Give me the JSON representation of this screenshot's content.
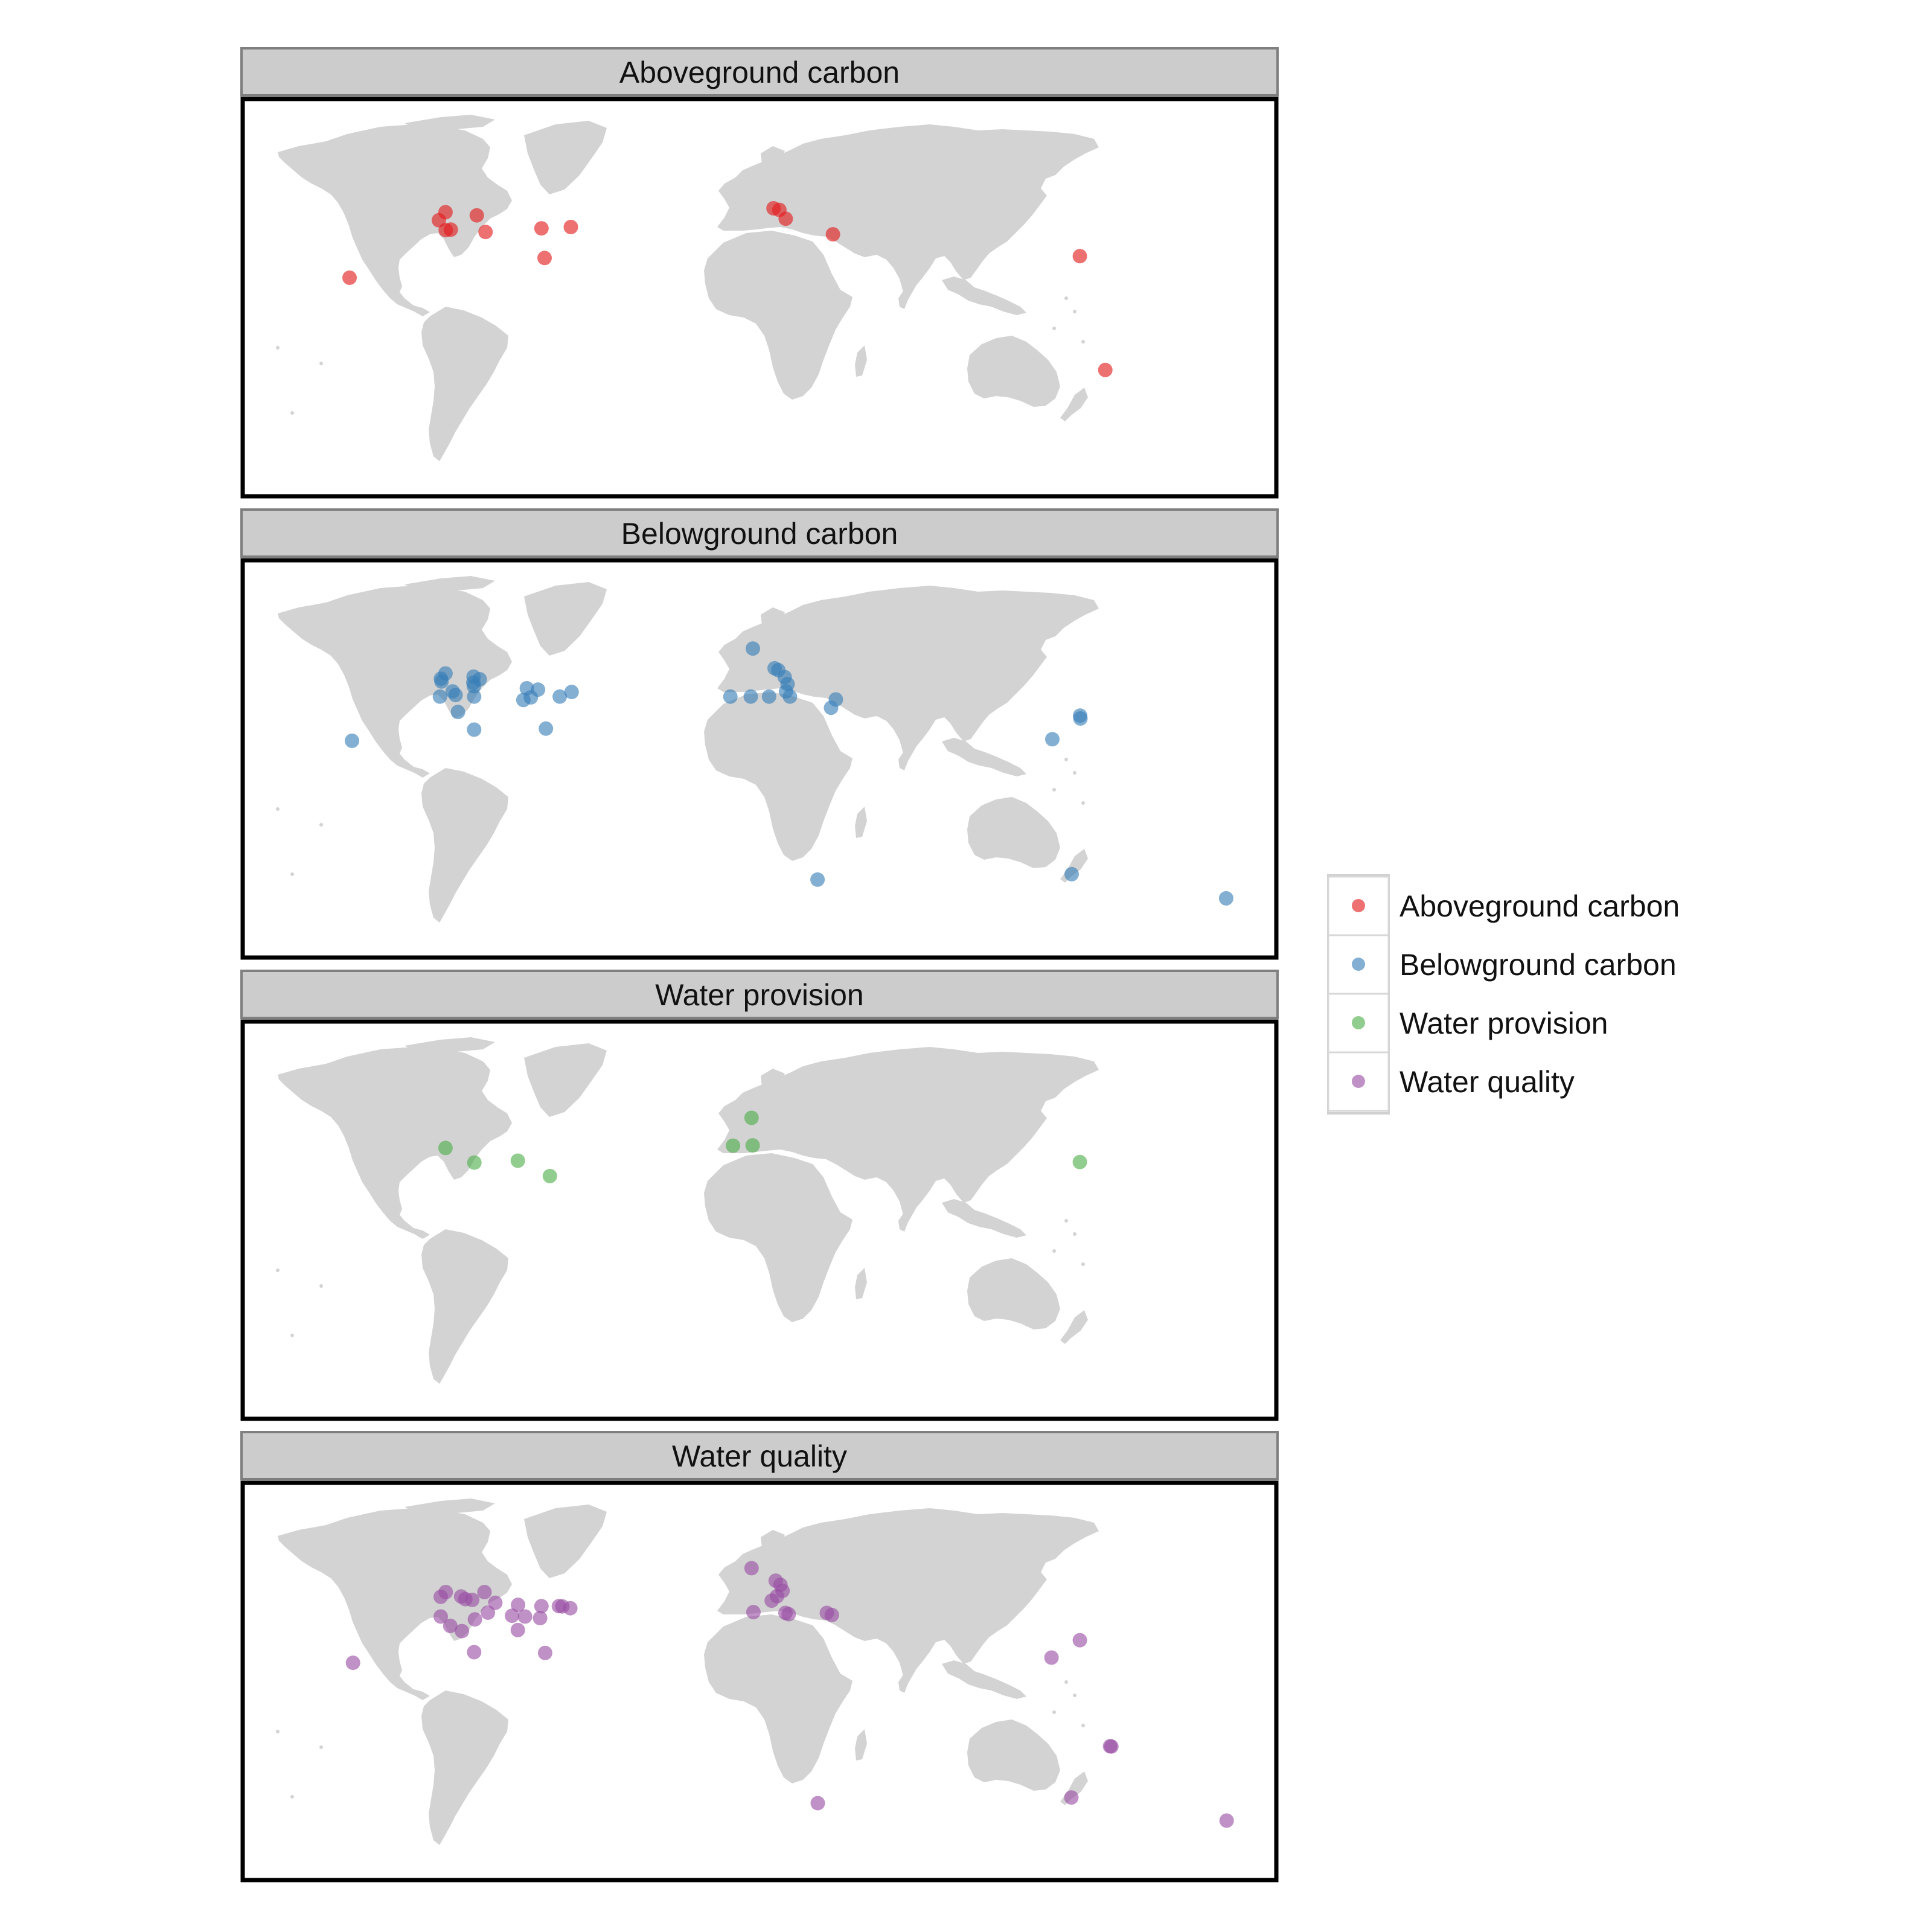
{
  "colors": {
    "land": "#d3d3d3",
    "strip_fill": "#cccccc",
    "strip_border": "#7f7f7f",
    "panel_border": "#000000"
  },
  "panels": [
    {
      "title": "Aboveground carbon",
      "color": "#e41a1c",
      "points": [
        {
          "lon": -120.1,
          "lat": 45.1
        },
        {
          "lon": -122.6,
          "lat": 42.0
        },
        {
          "lon": -120.0,
          "lat": 38.2
        },
        {
          "lon": -118.1,
          "lat": 38.4
        },
        {
          "lon": -108.3,
          "lat": 43.9
        },
        {
          "lon": -105.0,
          "lat": 37.5
        },
        {
          "lon": -83.9,
          "lat": 38.9
        },
        {
          "lon": -72.8,
          "lat": 39.4
        },
        {
          "lon": -82.7,
          "lat": 27.5
        },
        {
          "lon": -156.3,
          "lat": 19.9
        },
        {
          "lon": 3.7,
          "lat": 46.6
        },
        {
          "lon": 5.9,
          "lat": 46.0
        },
        {
          "lon": 8.3,
          "lat": 42.6
        },
        {
          "lon": 26.1,
          "lat": 36.6
        },
        {
          "lon": 119.3,
          "lat": 28.2
        },
        {
          "lon": 128.9,
          "lat": -15.6
        }
      ]
    },
    {
      "title": "Belowground carbon",
      "color": "#377eb8",
      "points": [
        {
          "lon": -120.1,
          "lat": 45.1
        },
        {
          "lon": -121.8,
          "lat": 43.1
        },
        {
          "lon": -121.6,
          "lat": 42.0
        },
        {
          "lon": -117.4,
          "lat": 38.2
        },
        {
          "lon": -122.2,
          "lat": 36.2
        },
        {
          "lon": -116.3,
          "lat": 36.8
        },
        {
          "lon": -109.5,
          "lat": 43.9
        },
        {
          "lon": -107.2,
          "lat": 42.9
        },
        {
          "lon": -109.6,
          "lat": 41.6
        },
        {
          "lon": -109.4,
          "lat": 40.2
        },
        {
          "lon": -109.3,
          "lat": 36.2
        },
        {
          "lon": -115.4,
          "lat": 30.3
        },
        {
          "lon": -109.3,
          "lat": 23.5
        },
        {
          "lon": -89.4,
          "lat": 39.4
        },
        {
          "lon": -85.2,
          "lat": 38.9
        },
        {
          "lon": -90.7,
          "lat": 34.9
        },
        {
          "lon": -87.9,
          "lat": 35.9
        },
        {
          "lon": -77.0,
          "lat": 36.2
        },
        {
          "lon": -72.5,
          "lat": 38.0
        },
        {
          "lon": -82.2,
          "lat": 23.9
        },
        {
          "lon": -155.4,
          "lat": 19.2
        },
        {
          "lon": -4.1,
          "lat": 54.7
        },
        {
          "lon": 4.1,
          "lat": 47.1
        },
        {
          "lon": 5.5,
          "lat": 46.4
        },
        {
          "lon": 7.9,
          "lat": 43.7
        },
        {
          "lon": 9.0,
          "lat": 41.0
        },
        {
          "lon": 8.4,
          "lat": 38.2
        },
        {
          "lon": 2.0,
          "lat": 36.2
        },
        {
          "lon": -12.6,
          "lat": 36.2
        },
        {
          "lon": -4.9,
          "lat": 36.2
        },
        {
          "lon": 9.9,
          "lat": 36.2
        },
        {
          "lon": 27.2,
          "lat": 35.1
        },
        {
          "lon": 25.4,
          "lat": 31.9
        },
        {
          "lon": 119.4,
          "lat": 28.9
        },
        {
          "lon": 119.5,
          "lat": 27.8
        },
        {
          "lon": 108.9,
          "lat": 19.8
        },
        {
          "lon": 20.3,
          "lat": -34.2
        },
        {
          "lon": 116.2,
          "lat": -32.1
        },
        {
          "lon": 174.5,
          "lat": -41.4
        }
      ]
    },
    {
      "title": "Water provision",
      "color": "#4daf4a",
      "points": [
        {
          "lon": -120.1,
          "lat": 40.0
        },
        {
          "lon": -109.2,
          "lat": 34.4
        },
        {
          "lon": -92.8,
          "lat": 35.1
        },
        {
          "lon": -80.7,
          "lat": 29.2
        },
        {
          "lon": -4.6,
          "lat": 51.6
        },
        {
          "lon": -11.6,
          "lat": 40.9
        },
        {
          "lon": -4.2,
          "lat": 41.0
        },
        {
          "lon": 119.3,
          "lat": 34.6
        }
      ]
    },
    {
      "title": "Water quality",
      "color": "#984ea3",
      "points": [
        {
          "lon": -120.0,
          "lat": 46.6
        },
        {
          "lon": -121.9,
          "lat": 44.8
        },
        {
          "lon": -114.2,
          "lat": 44.9
        },
        {
          "lon": -112.6,
          "lat": 43.9
        },
        {
          "lon": -110.0,
          "lat": 43.6
        },
        {
          "lon": -105.4,
          "lat": 46.6
        },
        {
          "lon": -101.3,
          "lat": 42.5
        },
        {
          "lon": -92.7,
          "lat": 41.7
        },
        {
          "lon": -83.9,
          "lat": 41.2
        },
        {
          "lon": -77.3,
          "lat": 41.2
        },
        {
          "lon": -73.0,
          "lat": 40.4
        },
        {
          "lon": -76.0,
          "lat": 41.1
        },
        {
          "lon": -84.4,
          "lat": 36.6
        },
        {
          "lon": -90.1,
          "lat": 37.2
        },
        {
          "lon": -95.0,
          "lat": 37.5
        },
        {
          "lon": -92.8,
          "lat": 32.0
        },
        {
          "lon": -104.1,
          "lat": 38.7
        },
        {
          "lon": -109.0,
          "lat": 36.1
        },
        {
          "lon": -113.9,
          "lat": 31.6
        },
        {
          "lon": -118.3,
          "lat": 33.6
        },
        {
          "lon": -121.9,
          "lat": 37.2
        },
        {
          "lon": -109.3,
          "lat": 23.5
        },
        {
          "lon": -82.5,
          "lat": 23.2
        },
        {
          "lon": -155.0,
          "lat": 19.4
        },
        {
          "lon": -4.6,
          "lat": 55.8
        },
        {
          "lon": 4.5,
          "lat": 51.0
        },
        {
          "lon": 6.3,
          "lat": 49.4
        },
        {
          "lon": 7.1,
          "lat": 47.1
        },
        {
          "lon": 5.0,
          "lat": 45.0
        },
        {
          "lon": 3.0,
          "lat": 43.3
        },
        {
          "lon": -3.9,
          "lat": 38.9
        },
        {
          "lon": 8.2,
          "lat": 38.6
        },
        {
          "lon": 9.4,
          "lat": 38.1
        },
        {
          "lon": 23.8,
          "lat": 38.6
        },
        {
          "lon": 25.7,
          "lat": 37.8
        },
        {
          "lon": 119.3,
          "lat": 28.1
        },
        {
          "lon": 108.6,
          "lat": 21.4
        },
        {
          "lon": 20.4,
          "lat": -34.6
        },
        {
          "lon": 130.7,
          "lat": -12.7
        },
        {
          "lon": 131.2,
          "lat": -12.8
        },
        {
          "lon": 116.1,
          "lat": -32.4
        },
        {
          "lon": 174.7,
          "lat": -41.3
        }
      ]
    }
  ],
  "legend": {
    "items": [
      {
        "label": "Aboveground carbon",
        "color": "#e41a1c"
      },
      {
        "label": "Belowground carbon",
        "color": "#377eb8"
      },
      {
        "label": "Water provision",
        "color": "#4daf4a"
      },
      {
        "label": "Water quality",
        "color": "#984ea3"
      }
    ]
  }
}
